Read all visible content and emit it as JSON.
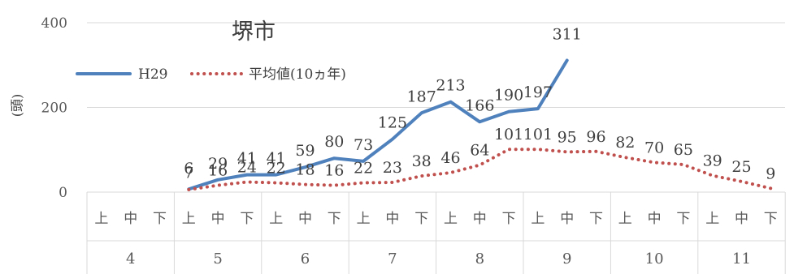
{
  "chart_data": {
    "type": "line",
    "title": "堺市",
    "ylabel": "(頭)",
    "ylim": [
      0,
      400
    ],
    "yticks": [
      0,
      200,
      400
    ],
    "grid": "horizontal",
    "legend": "top-left",
    "sub_labels": [
      "上",
      "中",
      "下"
    ],
    "months": [
      "4",
      "5",
      "6",
      "7",
      "8",
      "9",
      "10",
      "11"
    ],
    "series": [
      {
        "name": "H29",
        "color": "#4f81bd",
        "style": "solid",
        "values": [
          null,
          null,
          null,
          7,
          29,
          41,
          41,
          59,
          80,
          73,
          125,
          187,
          213,
          166,
          190,
          197,
          311,
          null,
          null,
          null,
          null,
          null,
          null,
          null
        ]
      },
      {
        "name": "平均値(10ヵ年)",
        "color": "#c0504d",
        "style": "dotted",
        "values": [
          null,
          null,
          null,
          6,
          16,
          24,
          22,
          18,
          16,
          22,
          23,
          38,
          46,
          64,
          101,
          101,
          95,
          96,
          82,
          70,
          65,
          39,
          25,
          9
        ]
      }
    ]
  }
}
